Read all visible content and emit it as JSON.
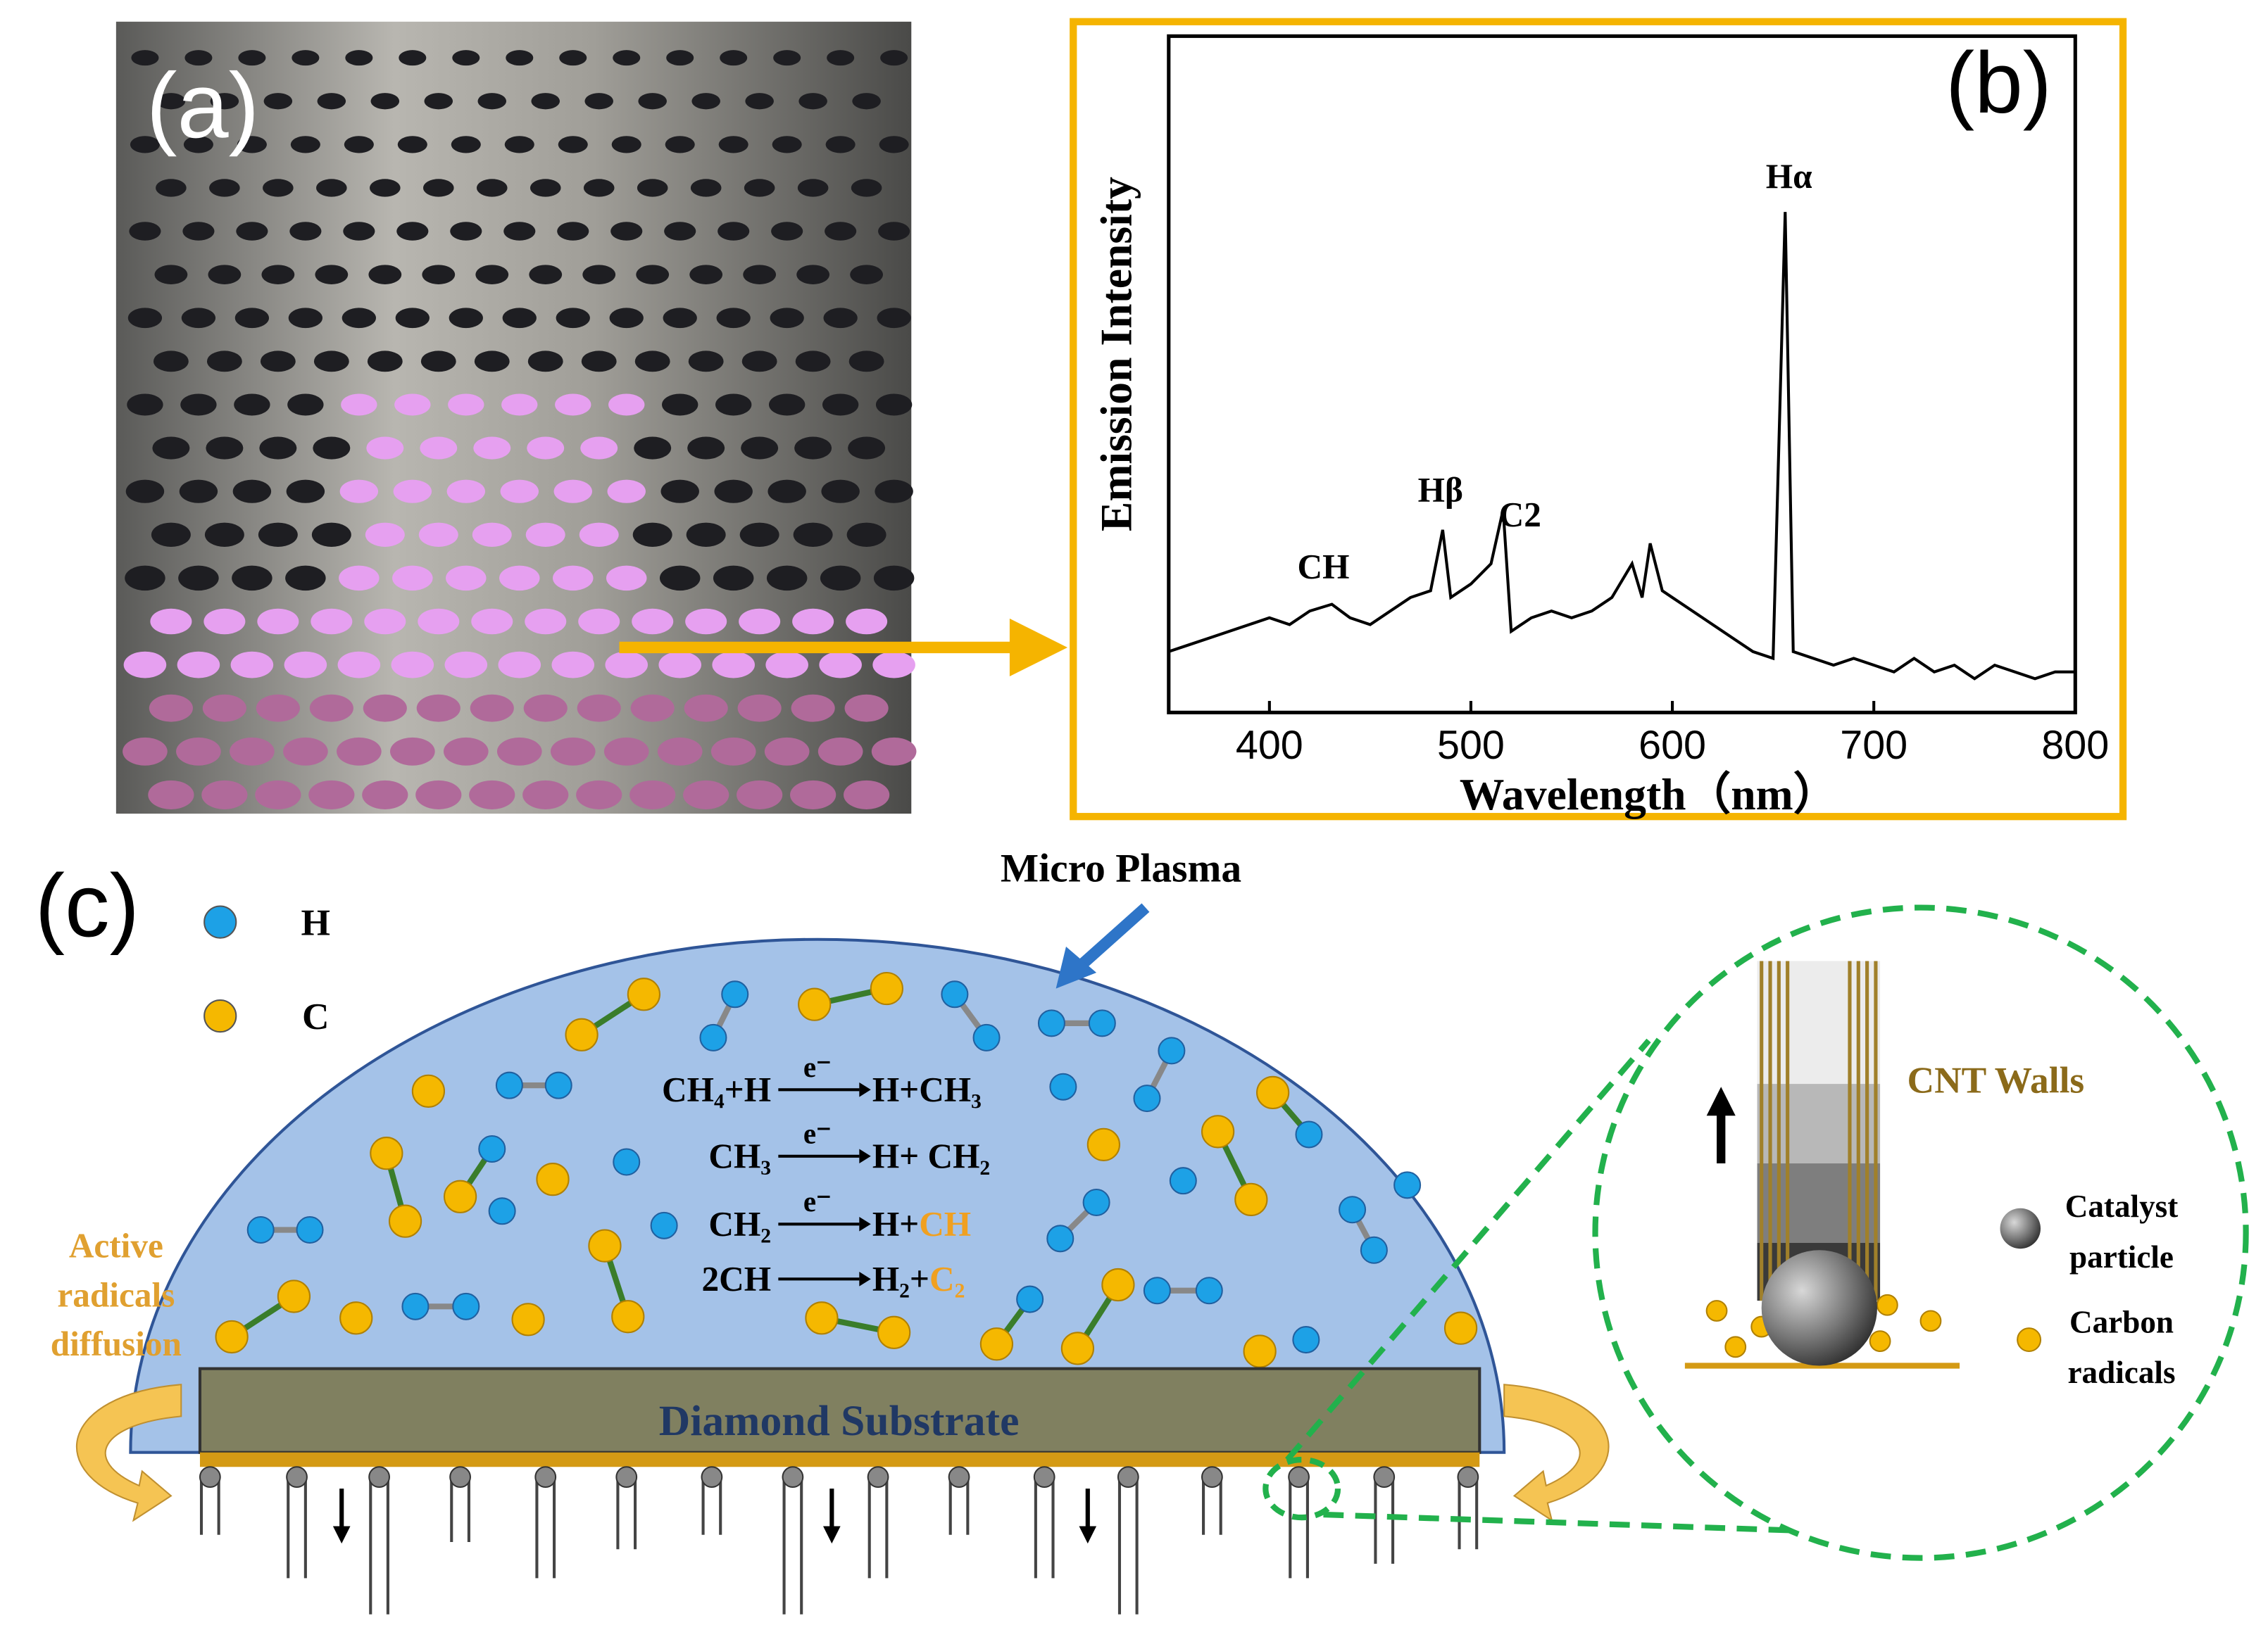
{
  "panel_a": {
    "label": "(a)"
  },
  "chart_data": {
    "type": "line",
    "label": "(b)",
    "xlabel": "Wavelength（nm）",
    "ylabel": "Emission Intensity",
    "annotations": [
      "CH",
      "Hβ",
      "C2",
      "Hα"
    ],
    "color": "#000000",
    "x": [
      350,
      360,
      370,
      380,
      390,
      400,
      410,
      420,
      431,
      440,
      450,
      460,
      470,
      480,
      486,
      490,
      500,
      510,
      516,
      520,
      530,
      540,
      550,
      560,
      570,
      580,
      585,
      589,
      595,
      600,
      610,
      620,
      630,
      640,
      650,
      656,
      660,
      670,
      680,
      690,
      700,
      710,
      720,
      730,
      740,
      750,
      760,
      770,
      780,
      790,
      800
    ],
    "values": [
      9,
      10,
      11,
      12,
      13,
      14,
      13,
      15,
      16,
      14,
      13,
      15,
      17,
      18,
      27,
      17,
      19,
      22,
      30,
      12,
      14,
      15,
      14,
      15,
      17,
      22,
      17,
      25,
      18,
      17,
      15,
      13,
      11,
      9,
      8,
      74,
      9,
      8,
      7,
      8,
      7,
      6,
      8,
      6,
      7,
      5,
      7,
      6,
      5,
      6,
      6
    ],
    "xlim": [
      350,
      800
    ],
    "xticks": [
      400,
      500,
      600,
      700,
      800
    ],
    "ylim": [
      0,
      100
    ]
  },
  "panel_c": {
    "label": "(c)",
    "plasma_label": "Micro Plasma",
    "legend": [
      {
        "symbol": "H",
        "color": "#1da1e6"
      },
      {
        "symbol": "C",
        "color": "#f5b800"
      }
    ],
    "equations": [
      {
        "left": "CH₄+H",
        "over": "e⁻",
        "right": "H+CH₃"
      },
      {
        "left": "CH₃",
        "over": "e⁻",
        "right": "H+ CH₂"
      },
      {
        "left": "CH₂",
        "over": "e⁻",
        "right": "H+",
        "highlight": "CH"
      },
      {
        "left": "2CH",
        "right": "H₂+",
        "highlight": "C₂"
      }
    ],
    "diffusion_label": [
      "Active",
      "radicals",
      "diffusion"
    ],
    "substrate_label": "Diamond Substrate",
    "zoom": {
      "cnt_label": "CNT Walls",
      "catalyst_label": [
        "Catalyst",
        "particle"
      ],
      "carbon_label": [
        "Carbon",
        "radicals"
      ]
    }
  }
}
